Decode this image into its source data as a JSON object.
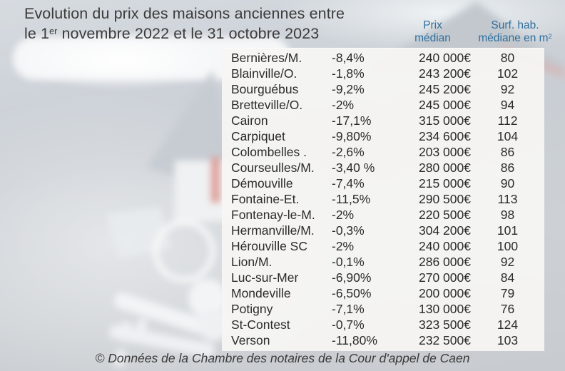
{
  "title": {
    "line1": "Evolution du prix des maisons anciennes entre",
    "line2_before_sup": "le 1",
    "line2_sup": "er",
    "line2_after_sup": " novembre 2022 et le 31 octobre 2023"
  },
  "header": {
    "price_col": {
      "line1": "Prix",
      "line2": "médian"
    },
    "surface_col": {
      "line1": "Surf. hab.",
      "line2_base": "médiane en m",
      "line2_sup": "2"
    }
  },
  "footer": {
    "credit": "© Données de la Chambre des notaires de la Cour d'appel de Caen"
  },
  "colors": {
    "header_blue": "#2e6f9e",
    "title_text": "#3b3b3b",
    "table_text": "#2b2b2b",
    "panel_bg": "rgba(246,245,243,0.94)",
    "background_gray": "#cbd0d5"
  },
  "icons": {
    "background_house": "house-illustration",
    "background_keys": "keys-illustration"
  },
  "chart_data": {
    "type": "table",
    "title": "Evolution du prix des maisons anciennes entre le 1er novembre 2022 et le 31 octobre 2023",
    "visible_column_headers": [
      "Prix médian",
      "Surf. hab. médiane en m²"
    ],
    "rows": [
      {
        "town": "Bernières/M.",
        "change": "-8,4%",
        "price": "240 000€",
        "surface": "80"
      },
      {
        "town": "Blainville/O.",
        "change": "-1,8%",
        "price": "243 200€",
        "surface": "102"
      },
      {
        "town": "Bourguébus",
        "change": "-9,2%",
        "price": "245 200€",
        "surface": "92"
      },
      {
        "town": "Bretteville/O.",
        "change": "-2%",
        "price": "245 000€",
        "surface": "94"
      },
      {
        "town": "Cairon",
        "change": "-17,1%",
        "price": "315 000€",
        "surface": "112"
      },
      {
        "town": "Carpiquet",
        "change": "-9,80%",
        "price": "234 600€",
        "surface": "104"
      },
      {
        "town": "Colombelles .",
        "change": "-2,6%",
        "price": "203 000€",
        "surface": "86"
      },
      {
        "town": "Courseulles/M.",
        "change": "-3,40 %",
        "price": "280 000€",
        "surface": "86"
      },
      {
        "town": "Démouville",
        "change": "-7,4%",
        "price": "215 000€",
        "surface": "90"
      },
      {
        "town": "Fontaine-Et.",
        "change": "-11,5%",
        "price": "290 500€",
        "surface": "113"
      },
      {
        "town": "Fontenay-le-M.",
        "change": "-2%",
        "price": "220 500€",
        "surface": "98"
      },
      {
        "town": "Hermanville/M.",
        "change": "-0,3%",
        "price": "304 200€",
        "surface": "101"
      },
      {
        "town": "Hérouville SC",
        "change": "-2%",
        "price": "240 000€",
        "surface": "100"
      },
      {
        "town": "Lion/M.",
        "change": "-0,1%",
        "price": "286 000€",
        "surface": "92"
      },
      {
        "town": "Luc-sur-Mer",
        "change": "-6,90%",
        "price": "270 000€",
        "surface": "84"
      },
      {
        "town": "Mondeville",
        "change": "-6,50%",
        "price": "200 000€",
        "surface": "79"
      },
      {
        "town": "Potigny",
        "change": "-7,1%",
        "price": "130 000€",
        "surface": "76"
      },
      {
        "town": "St-Contest",
        "change": "-0,7%",
        "price": "323 500€",
        "surface": "124"
      },
      {
        "town": "Verson",
        "change": "-11,80%",
        "price": "232 500€",
        "surface": "103"
      }
    ]
  }
}
